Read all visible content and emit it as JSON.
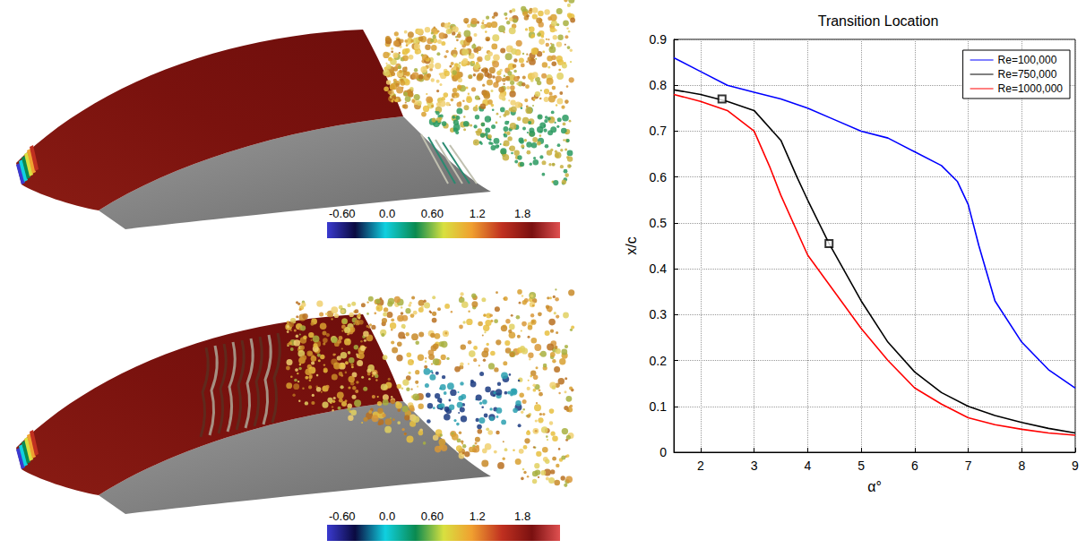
{
  "chart_data": {
    "type": "line",
    "title": "Transition Location",
    "x_label": "α°",
    "y_label": "x/c",
    "xlim": [
      1.5,
      9
    ],
    "xticks": [
      2,
      3,
      4,
      5,
      6,
      7,
      8,
      9
    ],
    "ylim": [
      0,
      0.9
    ],
    "yticks": [
      0,
      0.1,
      0.2,
      0.3,
      0.4,
      0.5,
      0.6,
      0.7,
      0.8,
      0.9
    ],
    "grid": true,
    "legend": "upper right",
    "series": [
      {
        "name": "Re=100,000",
        "color": "#0000ff",
        "line_style": "solid",
        "x": [
          1.5,
          2,
          2.5,
          3,
          3.5,
          4,
          4.5,
          5,
          5.5,
          6,
          6.5,
          6.8,
          7,
          7.2,
          7.5,
          8,
          8.5,
          9
        ],
        "values": [
          0.86,
          0.83,
          0.8,
          0.785,
          0.77,
          0.75,
          0.725,
          0.7,
          0.685,
          0.655,
          0.625,
          0.59,
          0.54,
          0.45,
          0.33,
          0.24,
          0.18,
          0.14
        ]
      },
      {
        "name": "Re=750,000",
        "color": "#000000",
        "line_style": "solid",
        "x": [
          1.5,
          2,
          2.5,
          3,
          3.5,
          3.8,
          4,
          4.4,
          5,
          5.5,
          6,
          6.5,
          7,
          7.5,
          8,
          8.5,
          9
        ],
        "values": [
          0.79,
          0.78,
          0.765,
          0.745,
          0.68,
          0.6,
          0.55,
          0.455,
          0.33,
          0.24,
          0.175,
          0.13,
          0.1,
          0.08,
          0.065,
          0.052,
          0.042
        ]
      },
      {
        "name": "Re=1000,000",
        "color": "#ff0000",
        "line_style": "solid",
        "x": [
          1.5,
          2,
          2.5,
          3,
          3.3,
          3.5,
          4,
          4.5,
          5,
          5.5,
          6,
          6.5,
          7,
          7.5,
          8,
          8.5,
          9
        ],
        "values": [
          0.78,
          0.765,
          0.745,
          0.7,
          0.62,
          0.56,
          0.43,
          0.35,
          0.27,
          0.2,
          0.14,
          0.105,
          0.075,
          0.06,
          0.05,
          0.042,
          0.037
        ]
      }
    ],
    "highlights": {
      "x": [
        2.4,
        4.4
      ],
      "values": [
        0.77,
        0.455
      ],
      "marker": "square",
      "color": "#000000"
    }
  },
  "colorbars": [
    {
      "range": [
        -0.8,
        2.3
      ],
      "ticks": [
        {
          "value": -0.6,
          "label": "-0.60"
        },
        {
          "value": 0,
          "label": "0.0"
        },
        {
          "value": 0.6,
          "label": "0.60"
        },
        {
          "value": 1.2,
          "label": "1.2"
        },
        {
          "value": 1.8,
          "label": "1.8"
        }
      ]
    },
    {
      "range": [
        -0.8,
        2.3
      ],
      "ticks": [
        {
          "value": -0.6,
          "label": "-0.60"
        },
        {
          "value": 0,
          "label": "0.0"
        },
        {
          "value": 0.6,
          "label": "0.60"
        },
        {
          "value": 1.2,
          "label": "1.2"
        },
        {
          "value": 1.8,
          "label": "1.8"
        }
      ]
    }
  ]
}
